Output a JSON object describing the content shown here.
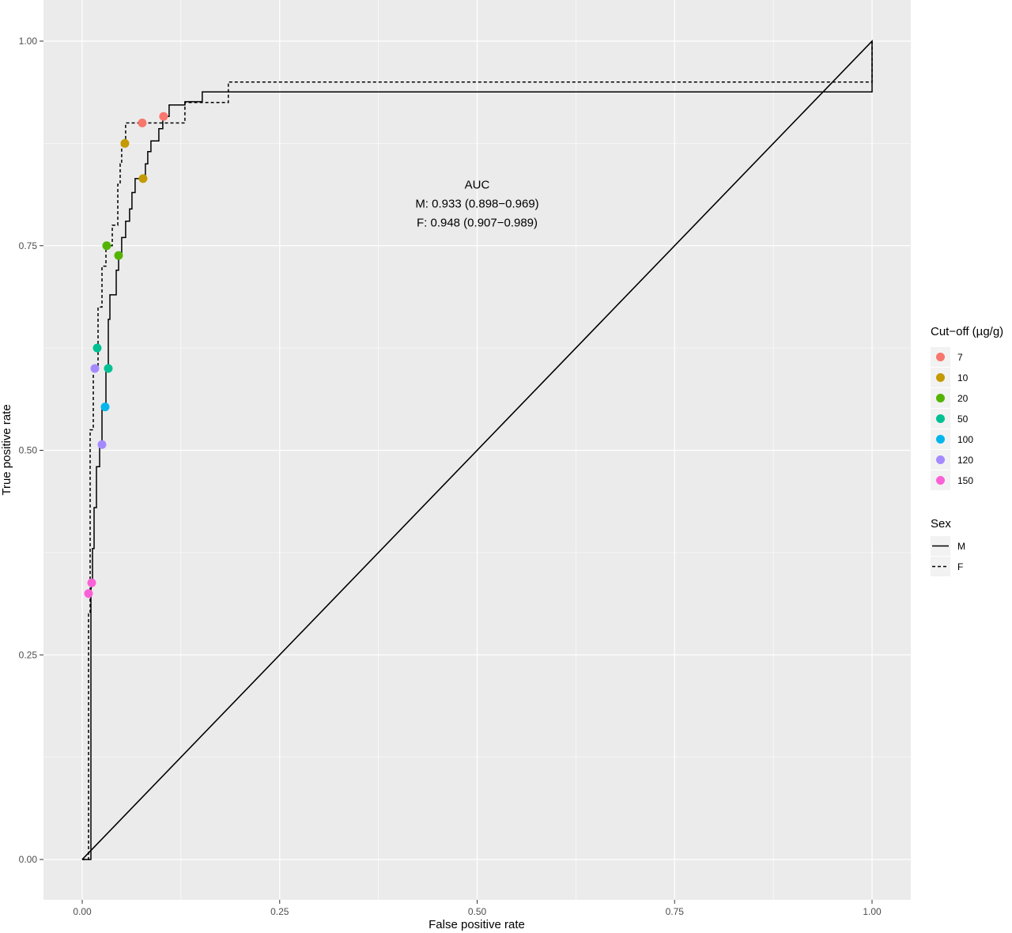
{
  "chart_data": {
    "type": "line",
    "xlabel": "False positive rate",
    "ylabel": "True positive rate",
    "xlim": [
      0,
      1
    ],
    "ylim": [
      0,
      1
    ],
    "x_ticks": [
      "0.00",
      "0.25",
      "0.50",
      "0.75",
      "1.00"
    ],
    "y_ticks": [
      "0.00",
      "0.25",
      "0.50",
      "0.75",
      "1.00"
    ],
    "grid": true,
    "legend_position": "right",
    "annotation": {
      "lines": [
        "AUC",
        "M: 0.933 (0.898−0.969)",
        "F: 0.948 (0.907−0.989)"
      ],
      "x": 0.5,
      "y": 0.82
    },
    "diagonal": [
      [
        0,
        0
      ],
      [
        1,
        1
      ]
    ],
    "series": [
      {
        "name": "M",
        "linetype": "solid",
        "points": [
          [
            0,
            0
          ],
          [
            0.011,
            0
          ],
          [
            0.011,
            0.33
          ],
          [
            0.013,
            0.34
          ],
          [
            0.013,
            0.38
          ],
          [
            0.015,
            0.38
          ],
          [
            0.015,
            0.43
          ],
          [
            0.018,
            0.43
          ],
          [
            0.018,
            0.48
          ],
          [
            0.022,
            0.48
          ],
          [
            0.022,
            0.51
          ],
          [
            0.025,
            0.51
          ],
          [
            0.025,
            0.55
          ],
          [
            0.03,
            0.55
          ],
          [
            0.03,
            0.6
          ],
          [
            0.033,
            0.6
          ],
          [
            0.033,
            0.66
          ],
          [
            0.035,
            0.66
          ],
          [
            0.035,
            0.69
          ],
          [
            0.043,
            0.69
          ],
          [
            0.043,
            0.72
          ],
          [
            0.046,
            0.72
          ],
          [
            0.046,
            0.74
          ],
          [
            0.05,
            0.74
          ],
          [
            0.05,
            0.76
          ],
          [
            0.055,
            0.76
          ],
          [
            0.055,
            0.78
          ],
          [
            0.06,
            0.78
          ],
          [
            0.06,
            0.795
          ],
          [
            0.063,
            0.795
          ],
          [
            0.063,
            0.815
          ],
          [
            0.067,
            0.815
          ],
          [
            0.067,
            0.832
          ],
          [
            0.08,
            0.832
          ],
          [
            0.08,
            0.85
          ],
          [
            0.083,
            0.85
          ],
          [
            0.083,
            0.865
          ],
          [
            0.087,
            0.865
          ],
          [
            0.087,
            0.878
          ],
          [
            0.097,
            0.878
          ],
          [
            0.097,
            0.893
          ],
          [
            0.102,
            0.893
          ],
          [
            0.102,
            0.908
          ],
          [
            0.11,
            0.908
          ],
          [
            0.11,
            0.922
          ],
          [
            0.13,
            0.922
          ],
          [
            0.13,
            0.926
          ],
          [
            0.152,
            0.926
          ],
          [
            0.152,
            0.938
          ],
          [
            1,
            0.938
          ],
          [
            1,
            1
          ],
          [
            0,
            0
          ]
        ]
      },
      {
        "name": "F",
        "linetype": "dashed",
        "points": [
          [
            0,
            0
          ],
          [
            0.008,
            0
          ],
          [
            0.008,
            0.3
          ],
          [
            0.01,
            0.3
          ],
          [
            0.01,
            0.525
          ],
          [
            0.014,
            0.525
          ],
          [
            0.014,
            0.6
          ],
          [
            0.02,
            0.6
          ],
          [
            0.02,
            0.675
          ],
          [
            0.025,
            0.675
          ],
          [
            0.025,
            0.725
          ],
          [
            0.03,
            0.725
          ],
          [
            0.03,
            0.75
          ],
          [
            0.038,
            0.75
          ],
          [
            0.038,
            0.775
          ],
          [
            0.045,
            0.775
          ],
          [
            0.045,
            0.825
          ],
          [
            0.048,
            0.825
          ],
          [
            0.048,
            0.85
          ],
          [
            0.05,
            0.85
          ],
          [
            0.05,
            0.875
          ],
          [
            0.055,
            0.875
          ],
          [
            0.055,
            0.9
          ],
          [
            0.13,
            0.9
          ],
          [
            0.13,
            0.925
          ],
          [
            0.185,
            0.925
          ],
          [
            0.185,
            0.95
          ],
          [
            1,
            0.95
          ],
          [
            1,
            1
          ]
        ]
      }
    ],
    "cutoff_legend_title": "Cut−off (µg/g)",
    "sex_legend_title": "Sex",
    "cutoffs": [
      {
        "label": "7",
        "color": "#F8766D"
      },
      {
        "label": "10",
        "color": "#C49A00"
      },
      {
        "label": "20",
        "color": "#53B400"
      },
      {
        "label": "50",
        "color": "#00C094"
      },
      {
        "label": "100",
        "color": "#00B6EB"
      },
      {
        "label": "120",
        "color": "#A58AFF"
      },
      {
        "label": "150",
        "color": "#FB61D7"
      }
    ],
    "cutoff_points": [
      {
        "cutoff": "7",
        "series": "F",
        "x": 0.076,
        "y": 0.9
      },
      {
        "cutoff": "7",
        "series": "M",
        "x": 0.103,
        "y": 0.908
      },
      {
        "cutoff": "10",
        "series": "F",
        "x": 0.054,
        "y": 0.875
      },
      {
        "cutoff": "10",
        "series": "M",
        "x": 0.077,
        "y": 0.832
      },
      {
        "cutoff": "20",
        "series": "F",
        "x": 0.031,
        "y": 0.75
      },
      {
        "cutoff": "20",
        "series": "M",
        "x": 0.046,
        "y": 0.738
      },
      {
        "cutoff": "50",
        "series": "F",
        "x": 0.019,
        "y": 0.625
      },
      {
        "cutoff": "50",
        "series": "M",
        "x": 0.033,
        "y": 0.6
      },
      {
        "cutoff": "100",
        "series": "M",
        "x": 0.029,
        "y": 0.553
      },
      {
        "cutoff": "120",
        "series": "F",
        "x": 0.016,
        "y": 0.6
      },
      {
        "cutoff": "120",
        "series": "M",
        "x": 0.025,
        "y": 0.507
      },
      {
        "cutoff": "150",
        "series": "F",
        "x": 0.008,
        "y": 0.325
      },
      {
        "cutoff": "150",
        "series": "M",
        "x": 0.012,
        "y": 0.338
      }
    ]
  }
}
